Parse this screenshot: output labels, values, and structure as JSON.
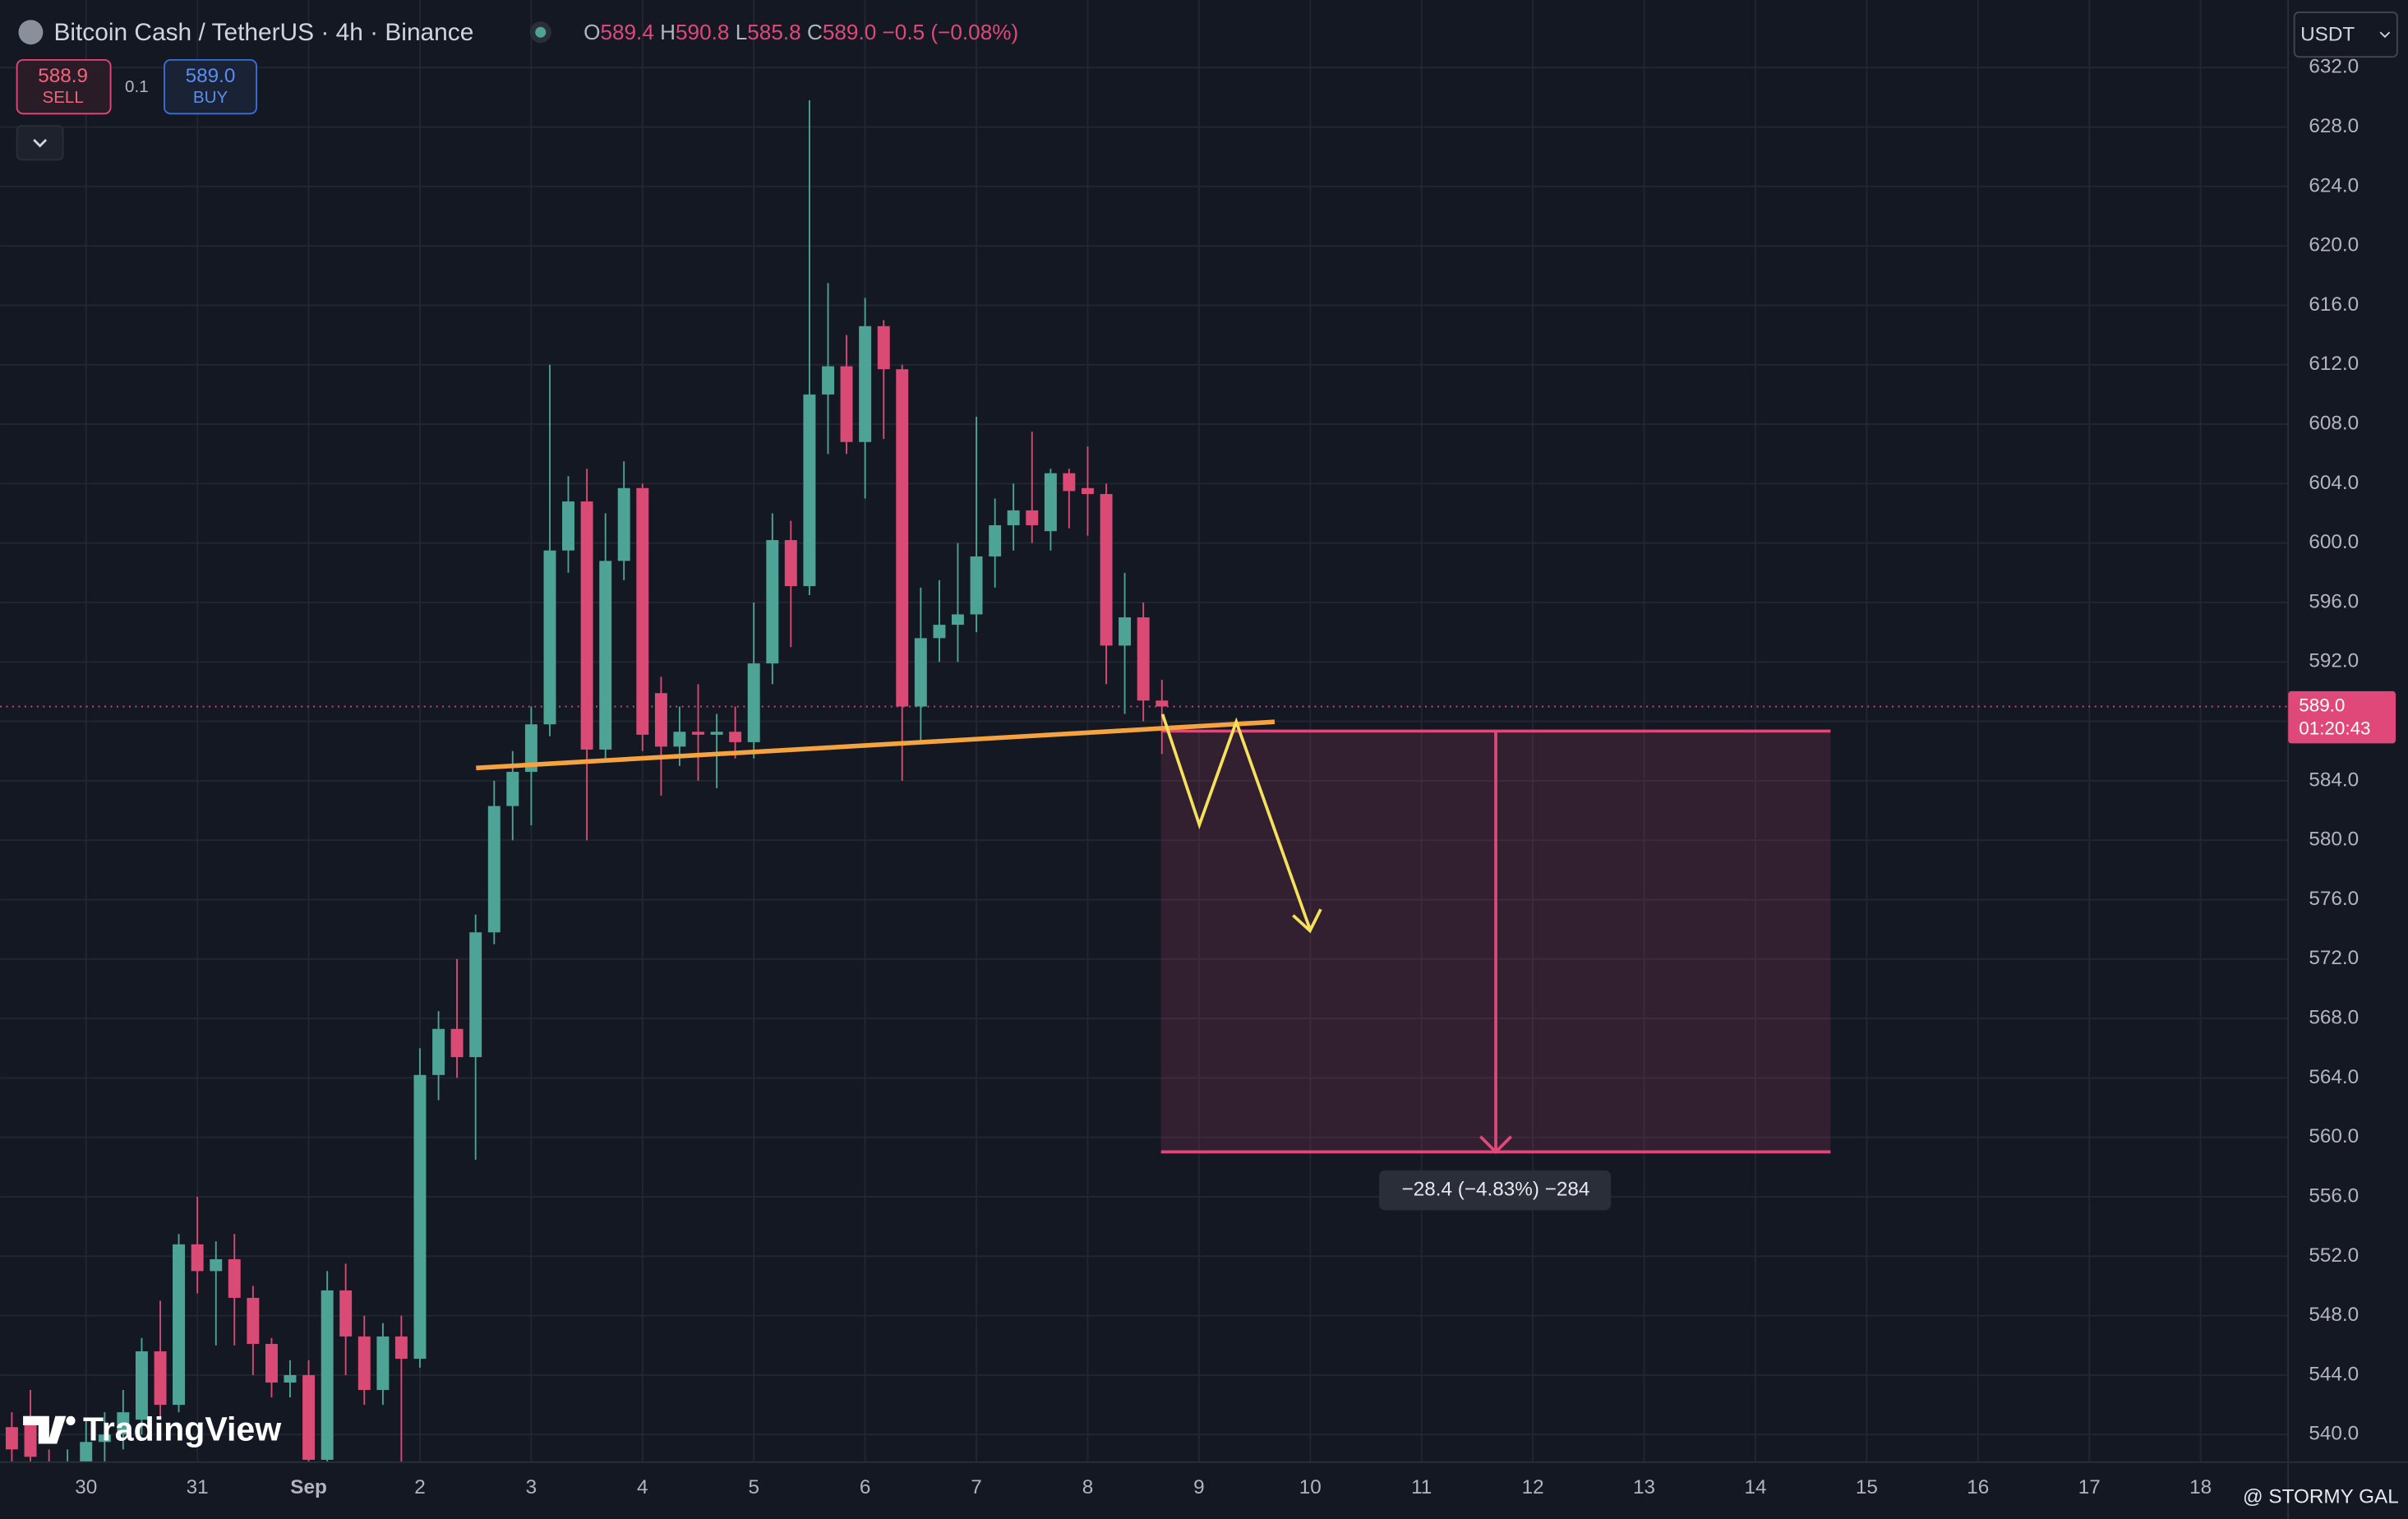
{
  "header": {
    "symbol": "Bitcoin Cash / TetherUS · 4h · Binance",
    "ohlc": [
      {
        "key": "O",
        "value": "589.4"
      },
      {
        "key": "H",
        "value": "590.8"
      },
      {
        "key": "L",
        "value": "585.8"
      },
      {
        "key": "C",
        "value": "589.0"
      }
    ],
    "change": "−0.5 (−0.08%)"
  },
  "trade": {
    "sell_price": "588.9",
    "sell": "SELL",
    "quantity": "0.1",
    "buy_price": "589.0",
    "buy": "BUY"
  },
  "currency": "USDT",
  "last_price": {
    "price": "589.0",
    "countdown": "01:20:43"
  },
  "measure_label": "−28.4 (−4.83%) −284",
  "logo": "TradingView",
  "watermark": "@ STORMY GAL",
  "chart_data": {
    "type": "candlestick",
    "up_color": "#4ea397",
    "down_color": "#d94a74",
    "grid": true,
    "xlim": [
      -0.773,
      19.787
    ],
    "ylim": [
      538.14,
      636.55
    ],
    "xticks": [
      {
        "value": 0,
        "label": "30"
      },
      {
        "value": 1,
        "label": "31"
      },
      {
        "value": 2,
        "label": "Sep"
      },
      {
        "value": 3,
        "label": "2"
      },
      {
        "value": 4,
        "label": "3"
      },
      {
        "value": 5,
        "label": "4"
      },
      {
        "value": 6,
        "label": "5"
      },
      {
        "value": 7,
        "label": "6"
      },
      {
        "value": 8,
        "label": "7"
      },
      {
        "value": 9,
        "label": "8"
      },
      {
        "value": 10,
        "label": "9"
      },
      {
        "value": 11,
        "label": "10"
      },
      {
        "value": 12,
        "label": "11"
      },
      {
        "value": 13,
        "label": "12"
      },
      {
        "value": 14,
        "label": "13"
      },
      {
        "value": 15,
        "label": "14"
      },
      {
        "value": 16,
        "label": "15"
      },
      {
        "value": 17,
        "label": "16"
      },
      {
        "value": 18,
        "label": "17"
      },
      {
        "value": 19,
        "label": "18"
      }
    ],
    "yticks": [
      {
        "value": 540,
        "label": "540.0"
      },
      {
        "value": 544,
        "label": "544.0"
      },
      {
        "value": 548,
        "label": "548.0"
      },
      {
        "value": 552,
        "label": "552.0"
      },
      {
        "value": 556,
        "label": "556.0"
      },
      {
        "value": 560,
        "label": "560.0"
      },
      {
        "value": 564,
        "label": "564.0"
      },
      {
        "value": 568,
        "label": "568.0"
      },
      {
        "value": 572,
        "label": "572.0"
      },
      {
        "value": 576,
        "label": "576.0"
      },
      {
        "value": 580,
        "label": "580.0"
      },
      {
        "value": 584,
        "label": "584.0"
      },
      {
        "value": 588,
        "label": "588.0"
      },
      {
        "value": 592,
        "label": "592.0"
      },
      {
        "value": 596,
        "label": "596.0"
      },
      {
        "value": 600,
        "label": "600.0"
      },
      {
        "value": 604,
        "label": "604.0"
      },
      {
        "value": 608,
        "label": "608.0"
      },
      {
        "value": 612,
        "label": "612.0"
      },
      {
        "value": 616,
        "label": "616.0"
      },
      {
        "value": 620,
        "label": "620.0"
      },
      {
        "value": 624,
        "label": "624.0"
      },
      {
        "value": 628,
        "label": "628.0"
      },
      {
        "value": 632,
        "label": "632.0"
      }
    ],
    "x": [
      -0.667,
      -0.5,
      -0.333,
      -0.167,
      0,
      0.167,
      0.333,
      0.5,
      0.667,
      0.833,
      1,
      1.167,
      1.333,
      1.5,
      1.667,
      1.833,
      2,
      2.167,
      2.333,
      2.5,
      2.667,
      2.833,
      3,
      3.167,
      3.333,
      3.5,
      3.667,
      3.833,
      4,
      4.167,
      4.333,
      4.5,
      4.667,
      4.833,
      5,
      5.167,
      5.333,
      5.5,
      5.667,
      5.833,
      6,
      6.167,
      6.333,
      6.5,
      6.667,
      6.833,
      7,
      7.167,
      7.333,
      7.5,
      7.667,
      7.833,
      8,
      8.167,
      8.333,
      8.5,
      8.667,
      8.833,
      9,
      9.167,
      9.333,
      9.5,
      9.667
    ],
    "open": [
      540.5,
      541,
      538,
      537,
      538,
      539.5,
      540,
      541,
      545.6,
      542,
      552.8,
      551,
      551.8,
      549.2,
      546.1,
      543.5,
      544,
      538.3,
      549.7,
      546.6,
      543,
      546.6,
      545.1,
      564.2,
      567.3,
      565.4,
      573.8,
      582.3,
      584.6,
      587.8,
      599.5,
      602.8,
      586.1,
      598.8,
      603.7,
      589.9,
      586.3,
      587.3,
      587.1,
      587.3,
      586.6,
      591.9,
      600.2,
      597.1,
      610,
      611.9,
      606.8,
      614.6,
      611.7,
      589,
      593.6,
      594.5,
      595.2,
      599.1,
      601.2,
      602.2,
      600.8,
      604.7,
      603.7,
      603.3,
      593.1,
      595,
      589.4
    ],
    "high": [
      541.5,
      543,
      539,
      539,
      541,
      541.5,
      543,
      546.5,
      549,
      553.5,
      556,
      553,
      553.5,
      550,
      546.5,
      545,
      545,
      551,
      551.5,
      548,
      547.5,
      548,
      566,
      568.5,
      572,
      575,
      584,
      586,
      589,
      612,
      604.5,
      605,
      602,
      605.5,
      604,
      591,
      589,
      590.5,
      588.5,
      589,
      596,
      602,
      601.5,
      629.8,
      617.5,
      614,
      616.5,
      615,
      612,
      597,
      597.5,
      600,
      608.5,
      603,
      604,
      607.5,
      605,
      605,
      606.5,
      604,
      598,
      596,
      590.8
    ],
    "low": [
      538,
      538,
      536,
      535,
      537,
      538,
      539,
      540,
      541,
      541.5,
      549.5,
      546,
      546,
      544,
      542.5,
      542.5,
      537,
      538,
      544,
      542,
      542,
      538,
      544.5,
      562.5,
      564,
      558.5,
      573,
      580,
      581,
      587,
      598,
      580,
      585.5,
      597.5,
      586,
      583,
      585,
      584,
      583.5,
      585.5,
      585.5,
      590.5,
      593,
      596.5,
      606,
      606,
      603,
      607,
      584,
      586.5,
      592,
      592,
      594,
      597,
      599.5,
      600,
      599.5,
      601,
      600.5,
      590.5,
      588.5,
      588,
      585.8
    ],
    "close": [
      539,
      538.5,
      537,
      538,
      539.5,
      540,
      541.5,
      545.6,
      542,
      552.8,
      551,
      551.8,
      549.2,
      546.1,
      543.5,
      544,
      538.3,
      549.7,
      546.6,
      543,
      546.6,
      545.1,
      564.2,
      567.3,
      565.4,
      573.8,
      582.3,
      584.6,
      587.8,
      599.5,
      602.8,
      586.1,
      598.8,
      603.7,
      587.1,
      586.3,
      587.3,
      587.1,
      587.3,
      586.6,
      591.9,
      600.2,
      597.1,
      610,
      611.9,
      606.8,
      614.6,
      611.7,
      589,
      593.6,
      594.5,
      595.2,
      599.1,
      601.2,
      602.2,
      601.2,
      604.7,
      603.5,
      603.3,
      593.1,
      595,
      589.4,
      589
    ]
  }
}
